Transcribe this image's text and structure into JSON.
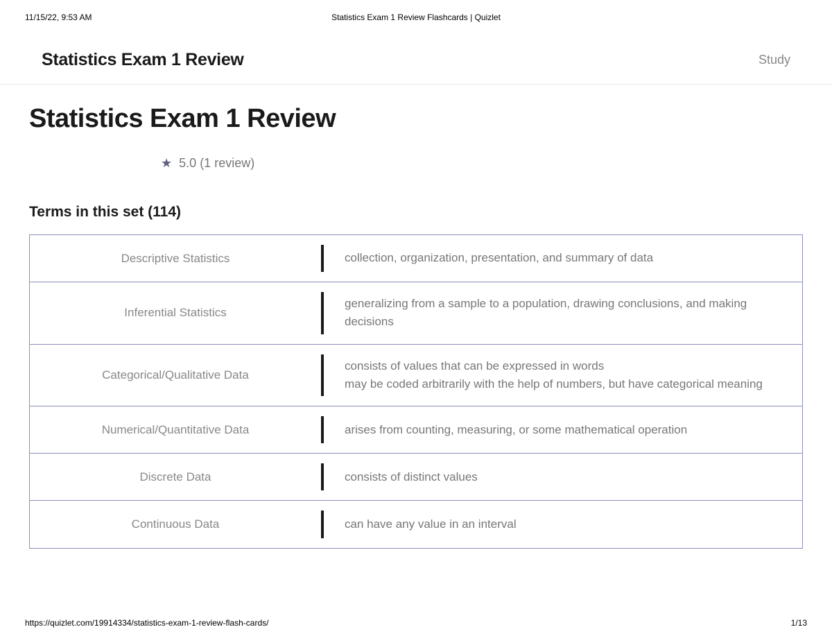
{
  "print_header": {
    "timestamp": "11/15/22, 9:53 AM",
    "page_title": "Statistics Exam 1 Review Flashcards | Quizlet"
  },
  "nav": {
    "title": "Statistics Exam 1 Review",
    "study_label": "Study"
  },
  "main": {
    "heading": "Statistics Exam 1 Review",
    "rating_value": "5.0",
    "rating_count": "(1 review)"
  },
  "terms": {
    "heading": "Terms in this set (114)",
    "rows": [
      {
        "term": "Descriptive Statistics",
        "definition": "collection, organization, presentation, and summary of data"
      },
      {
        "term": "Inferential Statistics",
        "definition": "generalizing from a sample to a population, drawing conclusions, and making decisions"
      },
      {
        "term": "Categorical/Qualitative Data",
        "definition": "consists of values that can be expressed in words\nmay be coded arbitrarily with the help of numbers, but have categorical meaning"
      },
      {
        "term": "Numerical/Quantitative Data",
        "definition": "arises from counting, measuring, or some mathematical operation"
      },
      {
        "term": "Discrete Data",
        "definition": "consists of distinct values"
      },
      {
        "term": "Continuous Data",
        "definition": "can have any value in an interval"
      }
    ]
  },
  "print_footer": {
    "url": "https://quizlet.com/19914334/statistics-exam-1-review-flash-cards/",
    "page_number": "1/13"
  },
  "styling": {
    "border_color": "#8a8dbb",
    "text_muted": "#888",
    "def_text": "#777",
    "divider_color": "#1a1a1a",
    "star_color": "#5e5e7e",
    "background": "#ffffff",
    "term_fontsize": 17,
    "title_fontsize": 38,
    "nav_title_fontsize": 25
  }
}
